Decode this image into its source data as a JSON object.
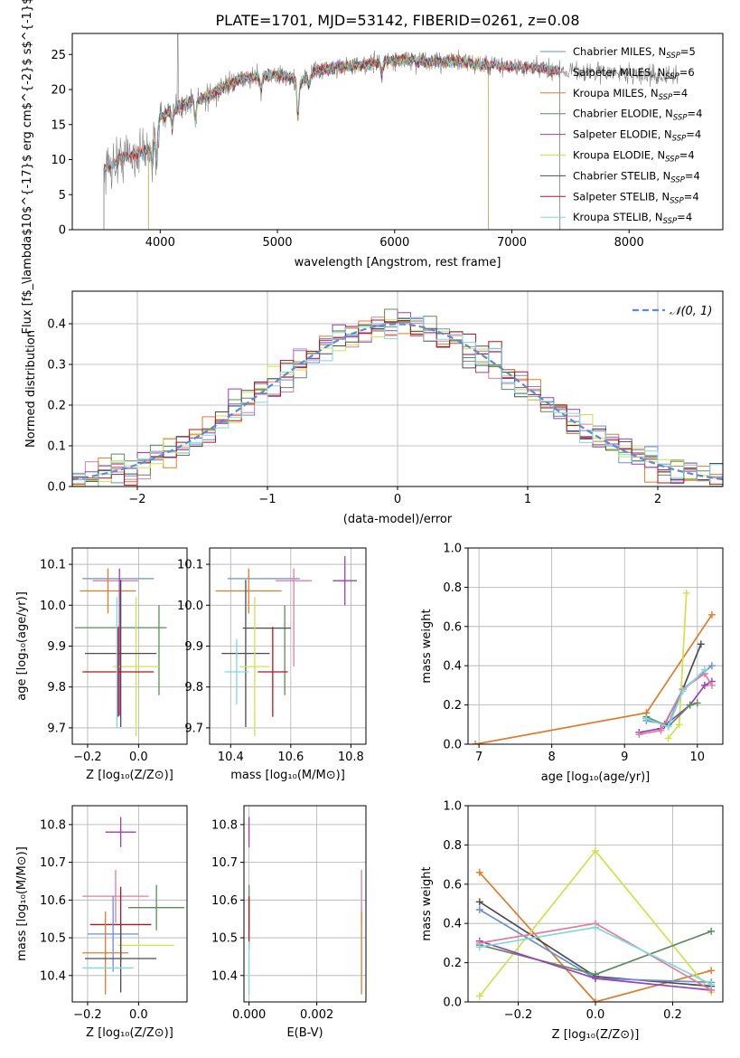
{
  "colors": {
    "Chabrier MILES": "#6a8fd8",
    "Salpeter MILES": "#e27ca0",
    "Kroupa MILES": "#e07b2e",
    "Chabrier ELODIE": "#5b8c5e",
    "Salpeter ELODIE": "#9b3fb8",
    "Kroupa ELODIE": "#cfe24a",
    "Chabrier STELIB": "#4d4d4d",
    "Salpeter STELIB": "#b5141e",
    "Kroupa STELIB": "#7fd9dc",
    "normal": "#5b8bd0",
    "observed": "#808080"
  },
  "chart_data": [
    {
      "id": "spectrum",
      "type": "line",
      "title": "PLATE=1701, MJD=53142, FIBERID=0261, z=0.08",
      "xlabel": "wavelength [Angstrom, rest frame]",
      "ylabel": "Flux [f$_\\lambda$10$^{-17}$ erg cm$^{-2}$ s$^{-1}$ A$^{-1}$]",
      "xlim": [
        3250,
        8800
      ],
      "ylim": [
        0,
        28
      ],
      "xticks": [
        4000,
        5000,
        6000,
        7000,
        8000
      ],
      "yticks": [
        0,
        5,
        10,
        15,
        20,
        25
      ],
      "grid": false,
      "legend_position": "right",
      "legend": [
        {
          "model": "Chabrier MILES",
          "nssp": "5"
        },
        {
          "model": "Salpeter MILES",
          "nssp": "6"
        },
        {
          "model": "Kroupa MILES",
          "nssp": "4"
        },
        {
          "model": "Chabrier ELODIE",
          "nssp": "4"
        },
        {
          "model": "Salpeter ELODIE",
          "nssp": "4"
        },
        {
          "model": "Kroupa ELODIE",
          "nssp": "4"
        },
        {
          "model": "Chabrier STELIB",
          "nssp": "4"
        },
        {
          "model": "Salpeter STELIB",
          "nssp": "4"
        },
        {
          "model": "Kroupa STELIB",
          "nssp": "4"
        }
      ],
      "continuum": [
        [
          3520,
          8.5
        ],
        [
          3600,
          9.5
        ],
        [
          3700,
          10.5
        ],
        [
          3800,
          10.8
        ],
        [
          3900,
          11.5
        ],
        [
          4000,
          16.0
        ],
        [
          4100,
          17.0
        ],
        [
          4200,
          18.0
        ],
        [
          4300,
          18.5
        ],
        [
          4400,
          19.0
        ],
        [
          4500,
          20.0
        ],
        [
          4600,
          20.8
        ],
        [
          4700,
          21.5
        ],
        [
          4800,
          21.8
        ],
        [
          4900,
          22.0
        ],
        [
          5000,
          22.0
        ],
        [
          5100,
          21.8
        ],
        [
          5200,
          21.0
        ],
        [
          5300,
          22.5
        ],
        [
          5500,
          23.2
        ],
        [
          5700,
          23.4
        ],
        [
          5900,
          24.0
        ],
        [
          6100,
          24.2
        ],
        [
          6300,
          23.9
        ],
        [
          6500,
          24.1
        ],
        [
          6600,
          23.9
        ],
        [
          6800,
          23.4
        ],
        [
          7000,
          23.3
        ],
        [
          7200,
          23.1
        ],
        [
          7400,
          22.8
        ],
        [
          7600,
          22.6
        ],
        [
          7800,
          22.4
        ],
        [
          8000,
          22.2
        ],
        [
          8200,
          22.0
        ],
        [
          8400,
          21.8
        ]
      ],
      "model_ranges": [
        [
          3520,
          7410
        ],
        [
          3520,
          7410
        ],
        [
          3520,
          7410
        ],
        [
          3900,
          6800
        ],
        [
          3900,
          6800
        ],
        [
          3900,
          6800
        ],
        [
          3520,
          7410
        ],
        [
          3520,
          7410
        ],
        [
          3520,
          7410
        ]
      ],
      "absorption_features": [
        [
          3934,
          4
        ],
        [
          3968,
          4
        ],
        [
          4102,
          2.5
        ],
        [
          4300,
          3
        ],
        [
          4861,
          2
        ],
        [
          5175,
          5
        ],
        [
          5270,
          1.5
        ],
        [
          5890,
          2
        ]
      ]
    },
    {
      "id": "residuals",
      "type": "histogram",
      "xlabel": "(data-model)/error",
      "ylabel": "Normed distribution",
      "xlim": [
        -2.5,
        2.5
      ],
      "ylim": [
        0,
        0.48
      ],
      "xticks": [
        -2,
        -1,
        0,
        1,
        2
      ],
      "yticks": [
        0.0,
        0.1,
        0.2,
        0.3,
        0.4
      ],
      "grid": true,
      "legend_position": "top-right",
      "legend": "𝒩(0, 1)",
      "bin_width": 0.1
    },
    {
      "id": "age-vs-Z",
      "type": "errorbar",
      "xlabel": "Z [log₁₀(Z/Z⊙)]",
      "ylabel": "age  [log₁₀(age/yr)]",
      "xlim": [
        -0.26,
        0.19
      ],
      "ylim": [
        9.66,
        10.14
      ],
      "xticks": [
        -0.2,
        0.0
      ],
      "yticks": [
        9.7,
        9.8,
        9.9,
        10.0,
        10.1
      ],
      "grid": true,
      "points": [
        {
          "model": "Chabrier MILES",
          "x": -0.08,
          "xerr": 0.14,
          "y": 10.065,
          "yerr": 0.0
        },
        {
          "model": "Salpeter MILES",
          "x": -0.09,
          "xerr": 0.09,
          "y": 10.06,
          "yerr": 0.0
        },
        {
          "model": "Kroupa MILES",
          "x": -0.12,
          "xerr": 0.11,
          "y": 10.035,
          "yerr": 0.055
        },
        {
          "model": "Chabrier ELODIE",
          "x": -0.07,
          "xerr": 0.18,
          "y": 9.945,
          "yerr": 0.0
        },
        {
          "model": "Chabrier ELODIE",
          "x": 0.08,
          "xerr": 0.0,
          "y": 9.89,
          "yerr": 0.11
        },
        {
          "model": "Salpeter ELODIE",
          "x": -0.075,
          "xerr": 0.0,
          "y": 9.91,
          "yerr": 0.18
        },
        {
          "model": "Kroupa ELODIE",
          "x": -0.01,
          "xerr": 0.09,
          "y": 9.85,
          "yerr": 0.17
        },
        {
          "model": "Chabrier STELIB",
          "x": -0.07,
          "xerr": 0.14,
          "y": 9.882,
          "yerr": 0.18
        },
        {
          "model": "Salpeter STELIB",
          "x": -0.08,
          "xerr": 0.14,
          "y": 9.837,
          "yerr": 0.11
        },
        {
          "model": "Kroupa STELIB",
          "x": -0.085,
          "xerr": 0.0,
          "y": 9.86,
          "yerr": 0.16
        }
      ]
    },
    {
      "id": "age-vs-mass",
      "type": "errorbar",
      "xlabel": "mass [log₁₀(M/M⊙)]",
      "ylabel": "",
      "xlim": [
        10.33,
        10.85
      ],
      "ylim": [
        9.66,
        10.14
      ],
      "xticks": [
        10.4,
        10.6,
        10.8
      ],
      "yticks": [
        9.7,
        9.8,
        9.9,
        10.0,
        10.1
      ],
      "grid": true,
      "points": [
        {
          "model": "Chabrier MILES",
          "x": 10.51,
          "xerr": 0.12,
          "y": 10.065,
          "yerr": 0.0
        },
        {
          "model": "Salpeter MILES",
          "x": 10.61,
          "xerr": 0.06,
          "y": 10.06,
          "yerr": 0.0
        },
        {
          "model": "Salpeter MILES",
          "x": 10.61,
          "xerr": 0.0,
          "y": 9.97,
          "yerr": 0.12
        },
        {
          "model": "Kroupa MILES",
          "x": 10.46,
          "xerr": 0.11,
          "y": 10.035,
          "yerr": 0.055
        },
        {
          "model": "Salpeter ELODIE",
          "x": 10.78,
          "xerr": 0.04,
          "y": 10.06,
          "yerr": 0.06
        },
        {
          "model": "Chabrier ELODIE",
          "x": 10.58,
          "xerr": 0.0,
          "y": 9.89,
          "yerr": 0.11
        },
        {
          "model": "Chabrier STELIB",
          "x": 10.45,
          "xerr": 0.08,
          "y": 9.882,
          "yerr": 0.18
        },
        {
          "model": "Chabrier STELIB",
          "x": 10.52,
          "xerr": 0.08,
          "y": 9.944,
          "yerr": 0.0
        },
        {
          "model": "Kroupa ELODIE",
          "x": 10.48,
          "xerr": 0.05,
          "y": 9.85,
          "yerr": 0.17
        },
        {
          "model": "Salpeter STELIB",
          "x": 10.54,
          "xerr": 0.05,
          "y": 9.837,
          "yerr": 0.11
        },
        {
          "model": "Kroupa STELIB",
          "x": 10.42,
          "xerr": 0.04,
          "y": 9.837,
          "yerr": 0.08
        }
      ]
    },
    {
      "id": "weight-vs-age",
      "type": "line",
      "xlabel": "age  [log₁₀(age/yr)]",
      "ylabel": "mass weight",
      "xlim": [
        6.85,
        10.35
      ],
      "ylim": [
        0,
        1
      ],
      "xticks": [
        7,
        8,
        9,
        10
      ],
      "yticks": [
        0.0,
        0.2,
        0.4,
        0.6,
        0.8,
        1.0
      ],
      "grid": true,
      "series": [
        {
          "model": "Kroupa MILES",
          "x": [
            6.95,
            9.3,
            10.2
          ],
          "y": [
            0.0,
            0.16,
            0.66
          ]
        },
        {
          "model": "Kroupa ELODIE",
          "x": [
            9.6,
            9.75,
            9.85
          ],
          "y": [
            0.03,
            0.1,
            0.77
          ]
        },
        {
          "model": "Chabrier MILES",
          "x": [
            9.3,
            9.6,
            9.8,
            10.2
          ],
          "y": [
            0.12,
            0.1,
            0.28,
            0.4
          ]
        },
        {
          "model": "Chabrier STELIB",
          "x": [
            9.3,
            9.55,
            9.8,
            10.05
          ],
          "y": [
            0.13,
            0.1,
            0.28,
            0.51
          ]
        },
        {
          "model": "Salpeter ELODIE",
          "x": [
            9.2,
            9.5,
            9.9,
            10.1,
            10.2
          ],
          "y": [
            0.06,
            0.08,
            0.2,
            0.3,
            0.32
          ]
        },
        {
          "model": "Salpeter MILES",
          "x": [
            9.2,
            9.5,
            9.8,
            10.1,
            10.2
          ],
          "y": [
            0.05,
            0.07,
            0.28,
            0.36,
            0.3
          ]
        },
        {
          "model": "Chabrier ELODIE",
          "x": [
            9.3,
            9.6,
            9.9,
            10.0
          ],
          "y": [
            0.14,
            0.09,
            0.2,
            0.21
          ]
        },
        {
          "model": "Kroupa STELIB",
          "x": [
            9.3,
            9.6,
            9.8,
            10.1
          ],
          "y": [
            0.13,
            0.09,
            0.27,
            0.38
          ]
        }
      ]
    },
    {
      "id": "mass-vs-Z",
      "type": "errorbar",
      "xlabel": "Z [log₁₀(Z/Z⊙)]",
      "ylabel": "mass [log₁₀(M/M⊙)]",
      "xlim": [
        -0.26,
        0.19
      ],
      "ylim": [
        10.33,
        10.85
      ],
      "xticks": [
        -0.2,
        0.0
      ],
      "yticks": [
        10.4,
        10.5,
        10.6,
        10.7,
        10.8
      ],
      "grid": true,
      "points": [
        {
          "model": "Salpeter ELODIE",
          "x": -0.07,
          "xerr": 0.06,
          "y": 10.78,
          "yerr": 0.04
        },
        {
          "model": "Salpeter MILES",
          "x": -0.09,
          "xerr": 0.13,
          "y": 10.61,
          "yerr": 0.07
        },
        {
          "model": "Chabrier ELODIE",
          "x": 0.07,
          "xerr": 0.11,
          "y": 10.58,
          "yerr": 0.06
        },
        {
          "model": "Salpeter STELIB",
          "x": -0.07,
          "xerr": 0.12,
          "y": 10.535,
          "yerr": 0.1
        },
        {
          "model": "Chabrier MILES",
          "x": -0.1,
          "xerr": 0.1,
          "y": 10.51,
          "yerr": 0.1
        },
        {
          "model": "Kroupa ELODIE",
          "x": 0.03,
          "xerr": 0.11,
          "y": 10.48,
          "yerr": 0.0
        },
        {
          "model": "Kroupa MILES",
          "x": -0.13,
          "xerr": 0.09,
          "y": 10.46,
          "yerr": 0.11
        },
        {
          "model": "Chabrier STELIB",
          "x": -0.07,
          "xerr": 0.14,
          "y": 10.445,
          "yerr": 0.09
        },
        {
          "model": "Kroupa STELIB",
          "x": -0.12,
          "xerr": 0.1,
          "y": 10.42,
          "yerr": 0.0
        }
      ]
    },
    {
      "id": "mass-vs-EBV",
      "type": "errorbar",
      "xlabel": "E(B-V)",
      "ylabel": "",
      "xlim": [
        -0.00015,
        0.00345
      ],
      "ylim": [
        10.33,
        10.85
      ],
      "xticks": [
        0.0,
        0.002
      ],
      "xtick_labels": [
        "0.000",
        "0.002"
      ],
      "yticks": [
        10.4,
        10.5,
        10.6,
        10.7,
        10.8
      ],
      "grid": true,
      "points": [
        {
          "model": "Salpeter ELODIE",
          "x": 0.0,
          "xerr": 0.0,
          "y": 10.78,
          "yerr": 0.04
        },
        {
          "model": "Chabrier ELODIE",
          "x": 0.0,
          "xerr": 0.0,
          "y": 10.58,
          "yerr": 0.06
        },
        {
          "model": "Salpeter STELIB",
          "x": 0.0,
          "xerr": 0.0,
          "y": 10.54,
          "yerr": 0.07
        },
        {
          "model": "Kroupa STELIB",
          "x": 0.0,
          "xerr": 0.0,
          "y": 10.42,
          "yerr": 0.07
        },
        {
          "model": "Salpeter MILES",
          "x": 0.00332,
          "xerr": 0.0,
          "y": 10.61,
          "yerr": 0.07
        },
        {
          "model": "Kroupa MILES",
          "x": 0.00332,
          "xerr": 0.0,
          "y": 10.46,
          "yerr": 0.11
        }
      ]
    },
    {
      "id": "weight-vs-Z",
      "type": "line",
      "xlabel": "Z [log₁₀(Z/Z⊙)]",
      "ylabel": "mass weight",
      "xlim": [
        -0.33,
        0.33
      ],
      "ylim": [
        0,
        1
      ],
      "xticks": [
        -0.2,
        0.0,
        0.2
      ],
      "yticks": [
        0.0,
        0.2,
        0.4,
        0.6,
        0.8,
        1.0
      ],
      "grid": true,
      "series": [
        {
          "model": "Kroupa MILES",
          "x": [
            -0.3,
            0.0,
            0.3
          ],
          "y": [
            0.66,
            0.0,
            0.16
          ]
        },
        {
          "model": "Kroupa ELODIE",
          "x": [
            -0.3,
            0.0,
            0.3
          ],
          "y": [
            0.03,
            0.77,
            0.05
          ]
        },
        {
          "model": "Chabrier STELIB",
          "x": [
            -0.3,
            0.0,
            0.3
          ],
          "y": [
            0.51,
            0.13,
            0.08
          ]
        },
        {
          "model": "Chabrier MILES",
          "x": [
            -0.3,
            0.0,
            0.3
          ],
          "y": [
            0.47,
            0.12,
            0.1
          ]
        },
        {
          "model": "Chabrier ELODIE",
          "x": [
            -0.3,
            0.0,
            0.3
          ],
          "y": [
            0.29,
            0.14,
            0.36
          ]
        },
        {
          "model": "Salpeter ELODIE",
          "x": [
            -0.3,
            0.0,
            0.3
          ],
          "y": [
            0.31,
            0.12,
            0.06
          ]
        },
        {
          "model": "Salpeter MILES",
          "x": [
            -0.3,
            0.0,
            0.3
          ],
          "y": [
            0.3,
            0.4,
            0.06
          ]
        },
        {
          "model": "Kroupa STELIB",
          "x": [
            -0.3,
            0.0,
            0.3
          ],
          "y": [
            0.28,
            0.38,
            0.09
          ]
        }
      ]
    }
  ]
}
